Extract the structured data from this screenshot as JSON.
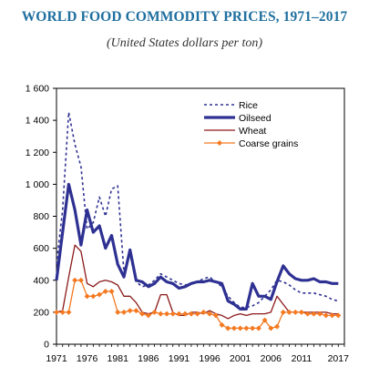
{
  "chart_data": {
    "type": "line",
    "title": "WORLD FOOD COMMODITY PRICES, 1971–2017",
    "subtitle": "(United States dollars per ton)",
    "xlabel": "",
    "ylabel": "",
    "xlim": [
      1971,
      2018
    ],
    "ylim": [
      0,
      1600
    ],
    "y_ticks": [
      0,
      200,
      400,
      600,
      800,
      1000,
      1200,
      1400,
      1600
    ],
    "y_tick_labels": [
      "0",
      "200",
      "400",
      "600",
      "800",
      "1 000",
      "1 200",
      "1 400",
      "1 600"
    ],
    "x_ticks": [
      1971,
      1976,
      1981,
      1986,
      1991,
      1996,
      2001,
      2006,
      2011,
      2017
    ],
    "x_tick_labels": [
      "1971",
      "1976",
      "1981",
      "1986",
      "1991",
      "1996",
      "2001",
      "2006",
      "2011",
      "2017"
    ],
    "grid": false,
    "legend_position": "top-right",
    "x": [
      1971,
      1972,
      1973,
      1974,
      1975,
      1976,
      1977,
      1978,
      1979,
      1980,
      1981,
      1982,
      1983,
      1984,
      1985,
      1986,
      1987,
      1988,
      1989,
      1990,
      1991,
      1992,
      1993,
      1994,
      1995,
      1996,
      1997,
      1998,
      1999,
      2000,
      2001,
      2002,
      2003,
      2004,
      2005,
      2006,
      2007,
      2008,
      2009,
      2010,
      2011,
      2012,
      2013,
      2014,
      2015,
      2016,
      2017
    ],
    "series": [
      {
        "name": "Rice",
        "color": "#2e3192",
        "style": "dashed",
        "values": [
          500,
          840,
          1450,
          1250,
          1110,
          720,
          760,
          920,
          800,
          970,
          990,
          450,
          560,
          390,
          360,
          370,
          400,
          440,
          420,
          400,
          380,
          370,
          380,
          390,
          410,
          420,
          390,
          360,
          300,
          260,
          230,
          230,
          240,
          260,
          300,
          340,
          400,
          390,
          370,
          340,
          320,
          320,
          320,
          310,
          300,
          280,
          270
        ]
      },
      {
        "name": "Oilseed",
        "color": "#2e3192",
        "style": "solid-thick",
        "values": [
          400,
          700,
          1000,
          840,
          620,
          840,
          700,
          740,
          600,
          680,
          500,
          420,
          590,
          400,
          390,
          360,
          380,
          420,
          390,
          380,
          350,
          360,
          380,
          390,
          390,
          400,
          390,
          380,
          270,
          250,
          220,
          220,
          380,
          300,
          300,
          280,
          390,
          490,
          440,
          410,
          400,
          400,
          410,
          390,
          390,
          380,
          380
        ]
      },
      {
        "name": "Wheat",
        "color": "#8b1a1a",
        "style": "solid",
        "values": [
          200,
          210,
          420,
          620,
          580,
          380,
          360,
          390,
          400,
          390,
          370,
          300,
          300,
          260,
          200,
          190,
          200,
          310,
          310,
          200,
          180,
          180,
          200,
          200,
          190,
          210,
          190,
          180,
          160,
          180,
          190,
          180,
          190,
          190,
          190,
          200,
          300,
          250,
          200,
          200,
          200,
          200,
          200,
          200,
          200,
          190,
          190
        ]
      },
      {
        "name": "Coarse grains",
        "color": "#f47920",
        "style": "solid-diamond",
        "values": [
          200,
          200,
          200,
          400,
          400,
          300,
          300,
          310,
          330,
          330,
          200,
          200,
          210,
          210,
          190,
          180,
          200,
          190,
          190,
          190,
          190,
          190,
          190,
          190,
          200,
          190,
          180,
          120,
          100,
          100,
          100,
          100,
          100,
          100,
          150,
          100,
          110,
          200,
          200,
          200,
          200,
          190,
          190,
          190,
          180,
          180,
          180
        ]
      }
    ]
  }
}
